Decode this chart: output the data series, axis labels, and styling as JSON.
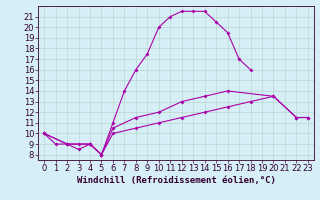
{
  "xlabel": "Windchill (Refroidissement éolien,°C)",
  "background_color": "#d6eef5",
  "grid_color": "#b8d8d0",
  "line_color": "#aa00aa",
  "xlim": [
    -0.5,
    23.5
  ],
  "ylim": [
    7.5,
    22
  ],
  "xticks": [
    0,
    1,
    2,
    3,
    4,
    5,
    6,
    7,
    8,
    9,
    10,
    11,
    12,
    13,
    14,
    15,
    16,
    17,
    18,
    19,
    20,
    21,
    22,
    23
  ],
  "yticks": [
    8,
    9,
    10,
    11,
    12,
    13,
    14,
    15,
    16,
    17,
    18,
    19,
    20,
    21
  ],
  "line1_x": [
    0,
    1,
    2,
    3,
    4,
    5,
    6,
    7,
    8,
    9,
    10,
    11,
    12,
    13,
    14,
    15,
    16,
    17,
    18
  ],
  "line1_y": [
    10,
    9,
    9,
    9,
    9,
    8,
    11,
    14,
    16,
    17.5,
    20,
    21,
    21.5,
    21.5,
    21.5,
    20.5,
    19.5,
    17,
    16
  ],
  "line2_x": [
    0,
    2,
    3,
    4,
    5,
    6,
    8,
    10,
    12,
    14,
    16,
    20,
    22,
    23
  ],
  "line2_y": [
    10,
    9,
    8.5,
    9,
    8,
    10.5,
    11.5,
    12,
    13,
    13.5,
    14,
    13.5,
    11.5,
    11.5
  ],
  "line3_x": [
    0,
    2,
    4,
    5,
    6,
    8,
    10,
    12,
    14,
    16,
    18,
    20,
    22,
    23
  ],
  "line3_y": [
    10,
    9,
    9,
    8,
    10,
    10.5,
    11,
    11.5,
    12,
    12.5,
    13,
    13.5,
    11.5,
    11.5
  ],
  "fontsize_xlabel": 6.5,
  "fontsize_ticks": 6
}
